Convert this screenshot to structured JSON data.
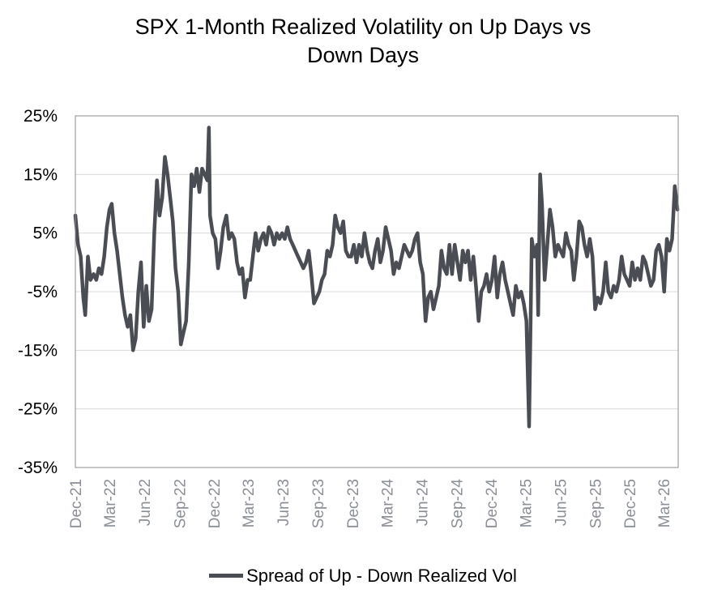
{
  "chart_data": {
    "type": "line",
    "title_lines": [
      "SPX 1-Month Realized Volatility on Up Days vs",
      "Down Days"
    ],
    "xlabel": "",
    "ylabel": "",
    "ylim": [
      -35,
      25
    ],
    "yticks": [
      25,
      15,
      5,
      -5,
      -15,
      -25,
      -35
    ],
    "ytick_labels": [
      "25%",
      "15%",
      "5%",
      "-5%",
      "-15%",
      "-25%",
      "-35%"
    ],
    "x_range": [
      "2021-12-01",
      "2026-04-08"
    ],
    "xtick_labels": [
      "Dec-21",
      "Mar-22",
      "Jun-22",
      "Sep-22",
      "Dec-22",
      "Mar-23",
      "Jun-23",
      "Sep-23",
      "Dec-23",
      "Mar-24",
      "Jun-24",
      "Sep-24",
      "Dec-24",
      "Mar-25",
      "Jun-25",
      "Sep-25",
      "Dec-25",
      "Mar-26"
    ],
    "xtick_dates": [
      "2021-12-01",
      "2022-03-01",
      "2022-06-01",
      "2022-09-01",
      "2022-12-01",
      "2023-03-01",
      "2023-06-01",
      "2023-09-01",
      "2023-12-01",
      "2024-03-01",
      "2024-06-01",
      "2024-09-01",
      "2024-12-01",
      "2025-03-01",
      "2025-06-01",
      "2025-09-01",
      "2025-12-01",
      "2026-03-01"
    ],
    "grid": "horizontal",
    "legend_position": "bottom",
    "color": "#4a4d53",
    "series": [
      {
        "name": "Spread of Up - Down Realized Vol",
        "points": [
          [
            "2021-12-01",
            8
          ],
          [
            "2021-12-08",
            3
          ],
          [
            "2021-12-15",
            1
          ],
          [
            "2021-12-22",
            -6
          ],
          [
            "2021-12-27",
            -9
          ],
          [
            "2022-01-03",
            1
          ],
          [
            "2022-01-10",
            -3
          ],
          [
            "2022-01-18",
            -2
          ],
          [
            "2022-01-25",
            -3
          ],
          [
            "2022-02-01",
            -1
          ],
          [
            "2022-02-08",
            -2
          ],
          [
            "2022-02-15",
            1
          ],
          [
            "2022-02-22",
            6
          ],
          [
            "2022-03-01",
            9
          ],
          [
            "2022-03-07",
            10
          ],
          [
            "2022-03-14",
            5
          ],
          [
            "2022-03-21",
            2
          ],
          [
            "2022-03-28",
            -2
          ],
          [
            "2022-04-04",
            -6
          ],
          [
            "2022-04-11",
            -9
          ],
          [
            "2022-04-18",
            -11
          ],
          [
            "2022-04-25",
            -9
          ],
          [
            "2022-05-02",
            -15
          ],
          [
            "2022-05-09",
            -13
          ],
          [
            "2022-05-16",
            -5
          ],
          [
            "2022-05-23",
            0
          ],
          [
            "2022-05-30",
            -11
          ],
          [
            "2022-06-06",
            -4
          ],
          [
            "2022-06-13",
            -10
          ],
          [
            "2022-06-20",
            -8
          ],
          [
            "2022-06-27",
            5
          ],
          [
            "2022-07-04",
            14
          ],
          [
            "2022-07-11",
            8
          ],
          [
            "2022-07-18",
            11
          ],
          [
            "2022-07-25",
            18
          ],
          [
            "2022-08-01",
            15
          ],
          [
            "2022-08-08",
            11
          ],
          [
            "2022-08-15",
            7
          ],
          [
            "2022-08-22",
            -1
          ],
          [
            "2022-08-29",
            -5
          ],
          [
            "2022-09-05",
            -14
          ],
          [
            "2022-09-12",
            -12
          ],
          [
            "2022-09-19",
            -10
          ],
          [
            "2022-09-26",
            0
          ],
          [
            "2022-10-03",
            15
          ],
          [
            "2022-10-10",
            13
          ],
          [
            "2022-10-17",
            16
          ],
          [
            "2022-10-24",
            12
          ],
          [
            "2022-10-31",
            16
          ],
          [
            "2022-11-07",
            15
          ],
          [
            "2022-11-14",
            14
          ],
          [
            "2022-11-18",
            23
          ],
          [
            "2022-11-21",
            8
          ],
          [
            "2022-11-28",
            5
          ],
          [
            "2022-12-05",
            4
          ],
          [
            "2022-12-12",
            -1
          ],
          [
            "2022-12-19",
            2
          ],
          [
            "2022-12-26",
            6
          ],
          [
            "2023-01-03",
            8
          ],
          [
            "2023-01-10",
            4
          ],
          [
            "2023-01-17",
            5
          ],
          [
            "2023-01-24",
            4
          ],
          [
            "2023-01-31",
            0
          ],
          [
            "2023-02-07",
            -2
          ],
          [
            "2023-02-14",
            -1
          ],
          [
            "2023-02-21",
            -6
          ],
          [
            "2023-02-28",
            -3
          ],
          [
            "2023-03-07",
            -3
          ],
          [
            "2023-03-14",
            1
          ],
          [
            "2023-03-21",
            5
          ],
          [
            "2023-03-28",
            2
          ],
          [
            "2023-04-04",
            4
          ],
          [
            "2023-04-11",
            5
          ],
          [
            "2023-04-18",
            3
          ],
          [
            "2023-04-25",
            6
          ],
          [
            "2023-05-02",
            5
          ],
          [
            "2023-05-09",
            3
          ],
          [
            "2023-05-16",
            5
          ],
          [
            "2023-05-23",
            4
          ],
          [
            "2023-05-30",
            5
          ],
          [
            "2023-06-06",
            4
          ],
          [
            "2023-06-13",
            6
          ],
          [
            "2023-06-20",
            4
          ],
          [
            "2023-06-27",
            3
          ],
          [
            "2023-07-04",
            2
          ],
          [
            "2023-07-11",
            1
          ],
          [
            "2023-07-18",
            0
          ],
          [
            "2023-07-25",
            -1
          ],
          [
            "2023-08-01",
            0
          ],
          [
            "2023-08-08",
            2
          ],
          [
            "2023-08-15",
            -2
          ],
          [
            "2023-08-22",
            -7
          ],
          [
            "2023-08-29",
            -6
          ],
          [
            "2023-09-05",
            -5
          ],
          [
            "2023-09-12",
            -3
          ],
          [
            "2023-09-19",
            -2
          ],
          [
            "2023-09-26",
            2
          ],
          [
            "2023-10-03",
            1
          ],
          [
            "2023-10-10",
            3
          ],
          [
            "2023-10-17",
            8
          ],
          [
            "2023-10-24",
            6
          ],
          [
            "2023-10-31",
            5
          ],
          [
            "2023-11-07",
            7
          ],
          [
            "2023-11-14",
            2
          ],
          [
            "2023-11-21",
            1
          ],
          [
            "2023-11-28",
            1
          ],
          [
            "2023-12-05",
            3
          ],
          [
            "2023-12-12",
            0
          ],
          [
            "2023-12-19",
            3
          ],
          [
            "2023-12-26",
            1
          ],
          [
            "2024-01-02",
            5
          ],
          [
            "2024-01-09",
            2
          ],
          [
            "2024-01-16",
            0
          ],
          [
            "2024-01-23",
            -1
          ],
          [
            "2024-01-30",
            2
          ],
          [
            "2024-02-06",
            4
          ],
          [
            "2024-02-13",
            0
          ],
          [
            "2024-02-20",
            2
          ],
          [
            "2024-02-27",
            6
          ],
          [
            "2024-03-05",
            4
          ],
          [
            "2024-03-12",
            2
          ],
          [
            "2024-03-19",
            -2
          ],
          [
            "2024-03-26",
            0
          ],
          [
            "2024-04-02",
            -1
          ],
          [
            "2024-04-09",
            1
          ],
          [
            "2024-04-16",
            3
          ],
          [
            "2024-04-23",
            2
          ],
          [
            "2024-04-30",
            1
          ],
          [
            "2024-05-07",
            2
          ],
          [
            "2024-05-14",
            4
          ],
          [
            "2024-05-21",
            5
          ],
          [
            "2024-05-28",
            0
          ],
          [
            "2024-06-04",
            -2
          ],
          [
            "2024-06-11",
            -10
          ],
          [
            "2024-06-18",
            -6
          ],
          [
            "2024-06-25",
            -5
          ],
          [
            "2024-07-02",
            -8
          ],
          [
            "2024-07-09",
            -6
          ],
          [
            "2024-07-16",
            -4
          ],
          [
            "2024-07-23",
            2
          ],
          [
            "2024-07-30",
            -1
          ],
          [
            "2024-08-06",
            -2
          ],
          [
            "2024-08-13",
            3
          ],
          [
            "2024-08-20",
            -2
          ],
          [
            "2024-08-27",
            3
          ],
          [
            "2024-09-03",
            0
          ],
          [
            "2024-09-10",
            -3
          ],
          [
            "2024-09-17",
            2
          ],
          [
            "2024-09-24",
            0
          ],
          [
            "2024-10-01",
            2
          ],
          [
            "2024-10-08",
            -3
          ],
          [
            "2024-10-15",
            1
          ],
          [
            "2024-10-22",
            -4
          ],
          [
            "2024-10-29",
            -10
          ],
          [
            "2024-11-05",
            -5
          ],
          [
            "2024-11-12",
            -4
          ],
          [
            "2024-11-19",
            -2
          ],
          [
            "2024-11-26",
            -5
          ],
          [
            "2024-12-03",
            -3
          ],
          [
            "2024-12-10",
            1
          ],
          [
            "2024-12-17",
            -6
          ],
          [
            "2024-12-24",
            -2
          ],
          [
            "2024-12-31",
            0
          ],
          [
            "2025-01-07",
            -3
          ],
          [
            "2025-01-14",
            -5
          ],
          [
            "2025-01-21",
            -7
          ],
          [
            "2025-01-28",
            -9
          ],
          [
            "2025-02-04",
            -4
          ],
          [
            "2025-02-11",
            -6
          ],
          [
            "2025-02-18",
            -5
          ],
          [
            "2025-02-25",
            -7
          ],
          [
            "2025-03-04",
            -10
          ],
          [
            "2025-03-11",
            -28
          ],
          [
            "2025-03-18",
            4
          ],
          [
            "2025-03-25",
            1
          ],
          [
            "2025-04-01",
            3
          ],
          [
            "2025-04-04",
            -9
          ],
          [
            "2025-04-09",
            15
          ],
          [
            "2025-04-14",
            10
          ],
          [
            "2025-04-21",
            -3
          ],
          [
            "2025-04-28",
            3
          ],
          [
            "2025-05-05",
            9
          ],
          [
            "2025-05-12",
            6
          ],
          [
            "2025-05-19",
            1
          ],
          [
            "2025-05-26",
            3
          ],
          [
            "2025-06-02",
            2
          ],
          [
            "2025-06-09",
            1
          ],
          [
            "2025-06-16",
            5
          ],
          [
            "2025-06-23",
            3
          ],
          [
            "2025-06-30",
            2
          ],
          [
            "2025-07-07",
            -3
          ],
          [
            "2025-07-14",
            1
          ],
          [
            "2025-07-21",
            7
          ],
          [
            "2025-07-28",
            6
          ],
          [
            "2025-08-04",
            3
          ],
          [
            "2025-08-11",
            1
          ],
          [
            "2025-08-18",
            4
          ],
          [
            "2025-08-25",
            1
          ],
          [
            "2025-09-01",
            -8
          ],
          [
            "2025-09-08",
            -6
          ],
          [
            "2025-09-15",
            -7
          ],
          [
            "2025-09-22",
            -5
          ],
          [
            "2025-09-29",
            0
          ],
          [
            "2025-10-06",
            -5
          ],
          [
            "2025-10-13",
            -6
          ],
          [
            "2025-10-20",
            -4
          ],
          [
            "2025-10-27",
            -5
          ],
          [
            "2025-11-03",
            -3
          ],
          [
            "2025-11-10",
            1
          ],
          [
            "2025-11-17",
            -2
          ],
          [
            "2025-11-24",
            -3
          ],
          [
            "2025-12-01",
            -4
          ],
          [
            "2025-12-08",
            0
          ],
          [
            "2025-12-15",
            -3
          ],
          [
            "2025-12-22",
            -1
          ],
          [
            "2025-12-29",
            -3
          ],
          [
            "2026-01-05",
            1
          ],
          [
            "2026-01-12",
            0
          ],
          [
            "2026-01-19",
            -2
          ],
          [
            "2026-01-26",
            -4
          ],
          [
            "2026-02-02",
            -3
          ],
          [
            "2026-02-09",
            2
          ],
          [
            "2026-02-16",
            3
          ],
          [
            "2026-02-23",
            1
          ],
          [
            "2026-03-02",
            -5
          ],
          [
            "2026-03-09",
            4
          ],
          [
            "2026-03-16",
            2
          ],
          [
            "2026-03-23",
            4
          ],
          [
            "2026-03-30",
            13
          ],
          [
            "2026-04-06",
            9
          ]
        ]
      }
    ]
  }
}
